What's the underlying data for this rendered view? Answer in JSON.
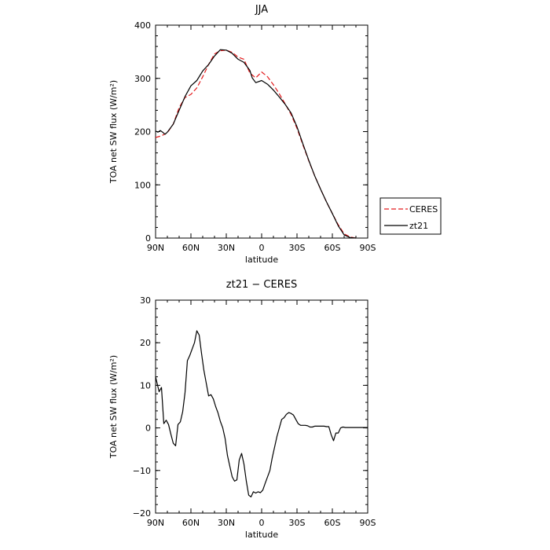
{
  "chart_data": [
    {
      "type": "line",
      "title": "JJA",
      "xlabel": "latitude",
      "ylabel": "TOA net SW flux (W/m²)",
      "x_ticks": [
        90,
        60,
        30,
        0,
        -30,
        -60,
        -90
      ],
      "x_tick_labels": [
        "90N",
        "60N",
        "30N",
        "0",
        "30S",
        "60S",
        "90S"
      ],
      "xlim": [
        90,
        -90
      ],
      "ylim": [
        0,
        400
      ],
      "y_ticks": [
        0,
        100,
        200,
        300,
        400
      ],
      "y_tick_labels": [
        "0",
        "100",
        "200",
        "300",
        "400"
      ],
      "grid": false,
      "legend_position": "right",
      "series": [
        {
          "name": "CERES",
          "color": "#e41a1c",
          "dash": "dashed",
          "x": [
            90,
            85,
            80,
            75,
            70,
            65,
            60,
            55,
            50,
            45,
            40,
            35,
            30,
            25,
            20,
            15,
            10,
            5,
            0,
            -5,
            -10,
            -15,
            -20,
            -25,
            -30,
            -35,
            -40,
            -45,
            -50,
            -55,
            -60,
            -65,
            -70,
            -75,
            -80
          ],
          "y": [
            189,
            192,
            198,
            214,
            245,
            264,
            270,
            282,
            303,
            326,
            346,
            352,
            353,
            349,
            340,
            336,
            310,
            301,
            312,
            303,
            288,
            271,
            252,
            232,
            206,
            175,
            145,
            117,
            92,
            68,
            46,
            25,
            8,
            2,
            0
          ]
        },
        {
          "name": "zt21",
          "color": "#000000",
          "dash": "solid",
          "x": [
            90,
            88,
            86,
            84,
            82,
            80,
            75,
            70,
            65,
            60,
            55,
            50,
            45,
            40,
            35,
            30,
            25,
            20,
            15,
            10,
            8,
            5,
            0,
            -5,
            -10,
            -15,
            -20,
            -25,
            -30,
            -35,
            -40,
            -45,
            -50,
            -55,
            -60,
            -65,
            -70,
            -75,
            -80
          ],
          "y": [
            201,
            199,
            202,
            199,
            195,
            199,
            214,
            240,
            266,
            286,
            296,
            314,
            326,
            342,
            354,
            353,
            347,
            336,
            330,
            315,
            301,
            292,
            296,
            289,
            278,
            265,
            251,
            235,
            209,
            177,
            146,
            117,
            92,
            68,
            46,
            23,
            6,
            1,
            0
          ]
        }
      ]
    },
    {
      "type": "line",
      "title": "zt21 − CERES",
      "xlabel": "latitude",
      "ylabel": "TOA net SW flux (W/m²)",
      "x_ticks": [
        90,
        60,
        30,
        0,
        -30,
        -60,
        -90
      ],
      "x_tick_labels": [
        "90N",
        "60N",
        "30N",
        "0",
        "30S",
        "60S",
        "90S"
      ],
      "xlim": [
        90,
        -90
      ],
      "ylim": [
        -20,
        30
      ],
      "y_ticks": [
        -20,
        -10,
        0,
        10,
        20,
        30
      ],
      "y_tick_labels": [
        "−20",
        "−10",
        "0",
        "10",
        "20",
        "30"
      ],
      "grid": false,
      "series": [
        {
          "name": "zt21",
          "color": "#000000",
          "dash": "solid",
          "x": [
            90,
            87,
            85,
            83,
            81,
            79,
            77,
            75,
            73,
            71,
            69,
            67,
            65,
            63,
            61,
            59,
            57,
            55,
            53,
            51,
            49,
            47,
            45,
            43,
            41,
            39,
            37,
            35,
            33,
            31,
            29,
            27,
            25,
            23,
            21,
            19,
            17,
            15,
            13,
            11,
            9,
            7,
            5,
            3,
            1,
            -1,
            -3,
            -5,
            -7,
            -9,
            -11,
            -13,
            -15,
            -17,
            -19,
            -21,
            -23,
            -25,
            -27,
            -29,
            -31,
            -33,
            -35,
            -37,
            -39,
            -41,
            -43,
            -45,
            -47,
            -49,
            -51,
            -53,
            -55,
            -57,
            -59,
            -61,
            -63,
            -65,
            -67,
            -69,
            -71,
            -73,
            -75,
            -77,
            -79,
            -81,
            -83,
            -85,
            -87,
            -90
          ],
          "y": [
            12.0,
            8.5,
            9.5,
            1.0,
            1.8,
            0.8,
            -1.5,
            -3.6,
            -4.2,
            0.8,
            1.4,
            3.8,
            8.3,
            15.8,
            17.0,
            18.5,
            20.0,
            22.8,
            21.8,
            17.5,
            13.5,
            10.5,
            7.5,
            7.8,
            6.8,
            5.0,
            3.5,
            1.5,
            0.0,
            -2.5,
            -6.5,
            -9.0,
            -11.5,
            -12.5,
            -12.2,
            -7.5,
            -6.0,
            -8.5,
            -12.5,
            -15.8,
            -16.2,
            -15.0,
            -15.3,
            -15.0,
            -15.2,
            -14.6,
            -13.0,
            -11.5,
            -10.0,
            -7.0,
            -4.5,
            -2.0,
            0.0,
            2.0,
            2.4,
            3.2,
            3.6,
            3.4,
            3.0,
            2.0,
            1.0,
            0.6,
            0.6,
            0.6,
            0.5,
            0.2,
            0.2,
            0.4,
            0.4,
            0.4,
            0.4,
            0.4,
            0.3,
            0.3,
            -1.6,
            -3.0,
            -1.2,
            -1.2,
            0.0,
            0.2,
            0.1,
            0.1,
            0.1,
            0.1,
            0.1,
            0.1,
            0.1,
            0.1,
            0.1,
            0.1
          ]
        }
      ]
    }
  ]
}
